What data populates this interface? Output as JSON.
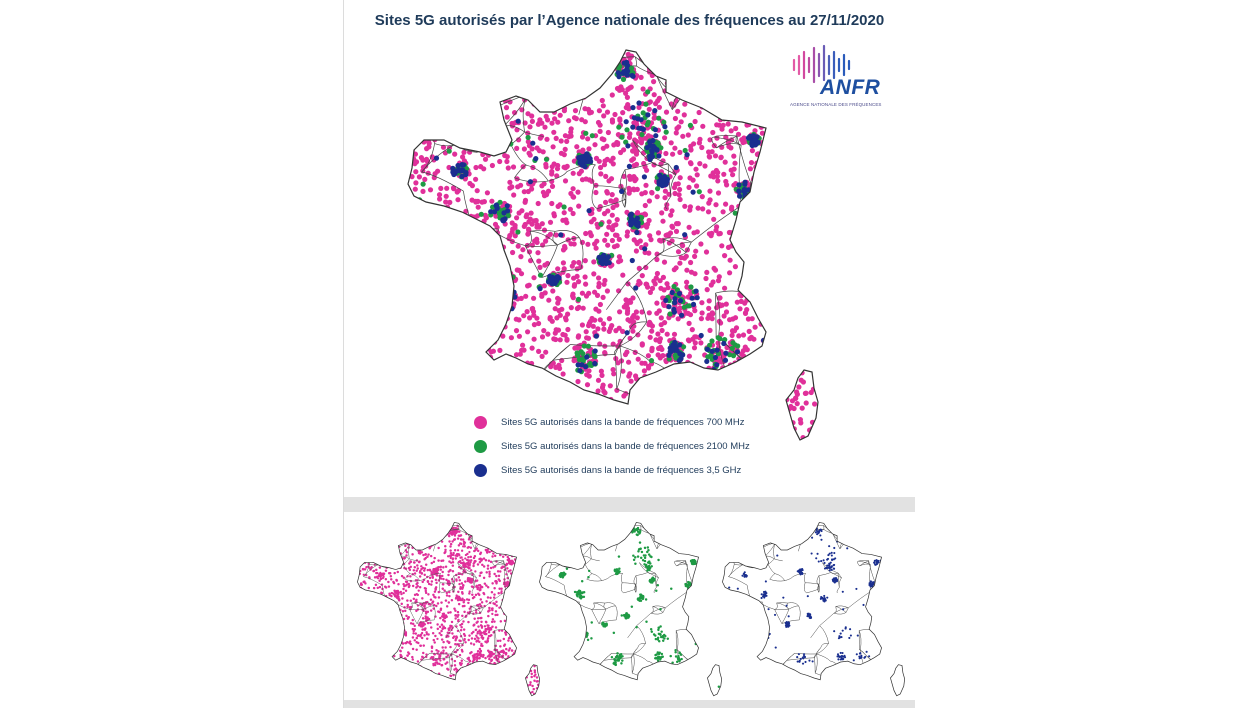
{
  "title": "Sites 5G autorisés par l’Agence nationale des fréquences au 27/11/2020",
  "logo": {
    "name": "ANFR",
    "tagline": "AGENCE NATIONALE DES FRÉQUENCES",
    "icon": "sound-wave-icon"
  },
  "colors": {
    "band_700": "#e0309a",
    "band_2100": "#1e9a44",
    "band_3500": "#1a2f8f",
    "title": "#1f3b5a",
    "background": "#ffffff",
    "separator": "#e2e2e2"
  },
  "legend": [
    {
      "label": "Sites 5G autorisés dans la bande de fréquences 700 MHz",
      "color": "#e0309a"
    },
    {
      "label": "Sites 5G autorisés dans la bande de fréquences 2100 MHz",
      "color": "#1e9a44"
    },
    {
      "label": "Sites 5G autorisés dans la bande de fréquences 3,5 GHz",
      "color": "#1a2f8f"
    }
  ],
  "small_maps": [
    {
      "band": "700 MHz",
      "color": "#e0309a",
      "density": "high"
    },
    {
      "band": "2100 MHz",
      "color": "#1e9a44",
      "density": "low"
    },
    {
      "band": "3,5 GHz",
      "color": "#1a2f8f",
      "density": "low"
    }
  ]
}
